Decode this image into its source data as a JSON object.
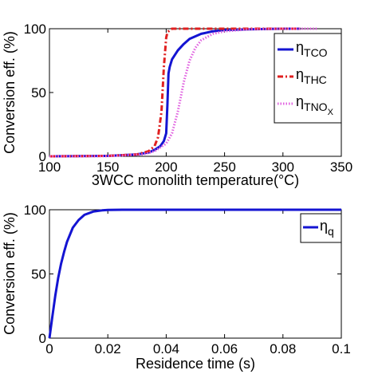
{
  "chart_data": [
    {
      "type": "line",
      "xlabel": "3WCC monolith temperature(°C)",
      "ylabel": "Conversion eff. (%)",
      "xlim": [
        100,
        350
      ],
      "ylim": [
        0,
        100
      ],
      "xticks": [
        "100",
        "150",
        "200",
        "250",
        "300",
        "350"
      ],
      "yticks": [
        "0",
        "50",
        "100"
      ],
      "grid": false,
      "legend_position": "top-right",
      "series": [
        {
          "id": "tco",
          "name": "η",
          "subscript": "TCO",
          "color": "#1414d2",
          "style": "solid",
          "x": [
            100,
            150,
            175,
            185,
            190,
            195,
            198,
            200,
            201,
            202,
            203,
            205,
            210,
            215,
            220,
            230,
            240,
            250,
            270,
            300,
            315
          ],
          "y": [
            0,
            0.3,
            1.5,
            3,
            5,
            8,
            12,
            18,
            40,
            65,
            70,
            76,
            83,
            88,
            92,
            96,
            98,
            99,
            99.5,
            100,
            100
          ]
        },
        {
          "id": "thc",
          "name": "η",
          "subscript": "THC",
          "color": "#e02020",
          "style": "dashdot",
          "x": [
            100,
            150,
            175,
            185,
            190,
            193,
            196,
            198,
            200,
            201,
            203,
            205,
            210,
            230,
            260,
            300,
            315
          ],
          "y": [
            0,
            0.3,
            1.5,
            4,
            8,
            15,
            35,
            70,
            93,
            97,
            99,
            100,
            100,
            100,
            100,
            100,
            100
          ]
        },
        {
          "id": "tno",
          "name": "η",
          "subscript": "TNO",
          "subscript2": "X",
          "color": "#e060e0",
          "style": "dotted",
          "x": [
            100,
            150,
            180,
            190,
            200,
            205,
            210,
            215,
            220,
            225,
            230,
            240,
            250,
            270,
            300,
            330
          ],
          "y": [
            0,
            0.2,
            1.5,
            4,
            10,
            18,
            35,
            58,
            75,
            85,
            91,
            96,
            98,
            99.5,
            100,
            100
          ]
        }
      ]
    },
    {
      "type": "line",
      "xlabel": "Residence time (s)",
      "ylabel": "Conversion eff. (%)",
      "xlim": [
        0,
        0.1
      ],
      "ylim": [
        0,
        100
      ],
      "xticks": [
        "0",
        "0.02",
        "0.04",
        "0.06",
        "0.08",
        "0.1"
      ],
      "yticks": [
        "0",
        "50",
        "100"
      ],
      "grid": false,
      "legend_position": "top-right",
      "series": [
        {
          "id": "q",
          "name": "η",
          "subscript": "q",
          "color": "#1414d2",
          "style": "solid",
          "x": [
            0,
            0.001,
            0.002,
            0.003,
            0.004,
            0.005,
            0.006,
            0.008,
            0.01,
            0.012,
            0.015,
            0.018,
            0.02,
            0.025,
            0.03,
            0.05,
            0.07,
            0.1
          ],
          "y": [
            0,
            17,
            33,
            47,
            58,
            67,
            75,
            86,
            92,
            96,
            98.6,
            99.5,
            99.8,
            100,
            100,
            100,
            100,
            100
          ]
        }
      ]
    }
  ]
}
